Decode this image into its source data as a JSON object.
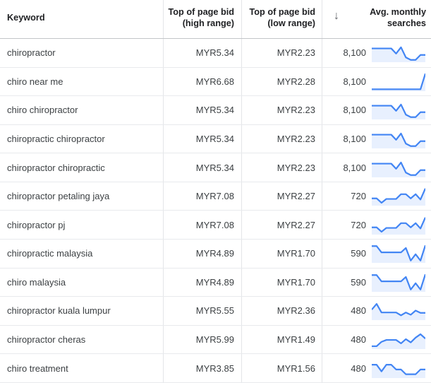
{
  "table": {
    "columns": {
      "keyword": "Keyword",
      "high_bid": "Top of page bid\n(high range)",
      "low_bid": "Top of page bid\n(low range)",
      "sort_icon": "↓",
      "searches": "Avg. monthly\nsearches"
    },
    "rows": [
      {
        "keyword": "chiropractor",
        "high_bid": "MYR5.34",
        "low_bid": "MYR2.23",
        "searches": "8,100",
        "trend": [
          28,
          28,
          28,
          28,
          28,
          55,
          22,
          75,
          88,
          88,
          62,
          62
        ]
      },
      {
        "keyword": "chiro near me",
        "high_bid": "MYR6.68",
        "low_bid": "MYR2.28",
        "searches": "8,100",
        "trend": [
          90,
          90,
          90,
          90,
          90,
          90,
          90,
          90,
          90,
          90,
          90,
          8
        ]
      },
      {
        "keyword": "chiro chiropractor",
        "high_bid": "MYR5.34",
        "low_bid": "MYR2.23",
        "searches": "8,100",
        "trend": [
          28,
          28,
          28,
          28,
          28,
          55,
          22,
          75,
          88,
          88,
          62,
          62
        ]
      },
      {
        "keyword": "chiropractic chiropractor",
        "high_bid": "MYR5.34",
        "low_bid": "MYR2.23",
        "searches": "8,100",
        "trend": [
          28,
          28,
          28,
          28,
          28,
          55,
          22,
          75,
          88,
          88,
          62,
          62
        ]
      },
      {
        "keyword": "chiropractor chiropractic",
        "high_bid": "MYR5.34",
        "low_bid": "MYR2.23",
        "searches": "8,100",
        "trend": [
          28,
          28,
          28,
          28,
          28,
          55,
          22,
          75,
          88,
          88,
          62,
          62
        ]
      },
      {
        "keyword": "chiropractor petaling jaya",
        "high_bid": "MYR7.08",
        "low_bid": "MYR2.27",
        "searches": "720",
        "trend": [
          62,
          62,
          85,
          65,
          65,
          65,
          40,
          40,
          62,
          40,
          68,
          10
        ]
      },
      {
        "keyword": "chiropractor pj",
        "high_bid": "MYR7.08",
        "low_bid": "MYR2.27",
        "searches": "720",
        "trend": [
          62,
          62,
          85,
          65,
          65,
          65,
          40,
          40,
          62,
          40,
          68,
          10
        ]
      },
      {
        "keyword": "chiropractic malaysia",
        "high_bid": "MYR4.89",
        "low_bid": "MYR1.70",
        "searches": "590",
        "trend": [
          12,
          12,
          45,
          45,
          45,
          45,
          45,
          22,
          88,
          55,
          88,
          8
        ]
      },
      {
        "keyword": "chiro malaysia",
        "high_bid": "MYR4.89",
        "low_bid": "MYR1.70",
        "searches": "590",
        "trend": [
          12,
          12,
          45,
          45,
          45,
          45,
          45,
          22,
          88,
          55,
          88,
          8
        ]
      },
      {
        "keyword": "chiropractor kuala lumpur",
        "high_bid": "MYR5.55",
        "low_bid": "MYR2.36",
        "searches": "480",
        "trend": [
          45,
          15,
          60,
          60,
          60,
          60,
          75,
          60,
          72,
          50,
          62,
          62
        ]
      },
      {
        "keyword": "chiropractor cheras",
        "high_bid": "MYR5.99",
        "low_bid": "MYR1.49",
        "searches": "480",
        "trend": [
          85,
          85,
          62,
          52,
          52,
          52,
          70,
          48,
          65,
          40,
          22,
          45
        ]
      },
      {
        "keyword": "chiro treatment",
        "high_bid": "MYR3.85",
        "low_bid": "MYR1.56",
        "searches": "480",
        "trend": [
          30,
          30,
          65,
          30,
          30,
          55,
          55,
          80,
          80,
          80,
          55,
          55
        ]
      }
    ]
  },
  "colors": {
    "spark_line": "#4285f4",
    "spark_fill": "#e8f0fe",
    "header_text": "#202124",
    "body_text": "#3c4043",
    "sort_icon": "#5f6368"
  }
}
